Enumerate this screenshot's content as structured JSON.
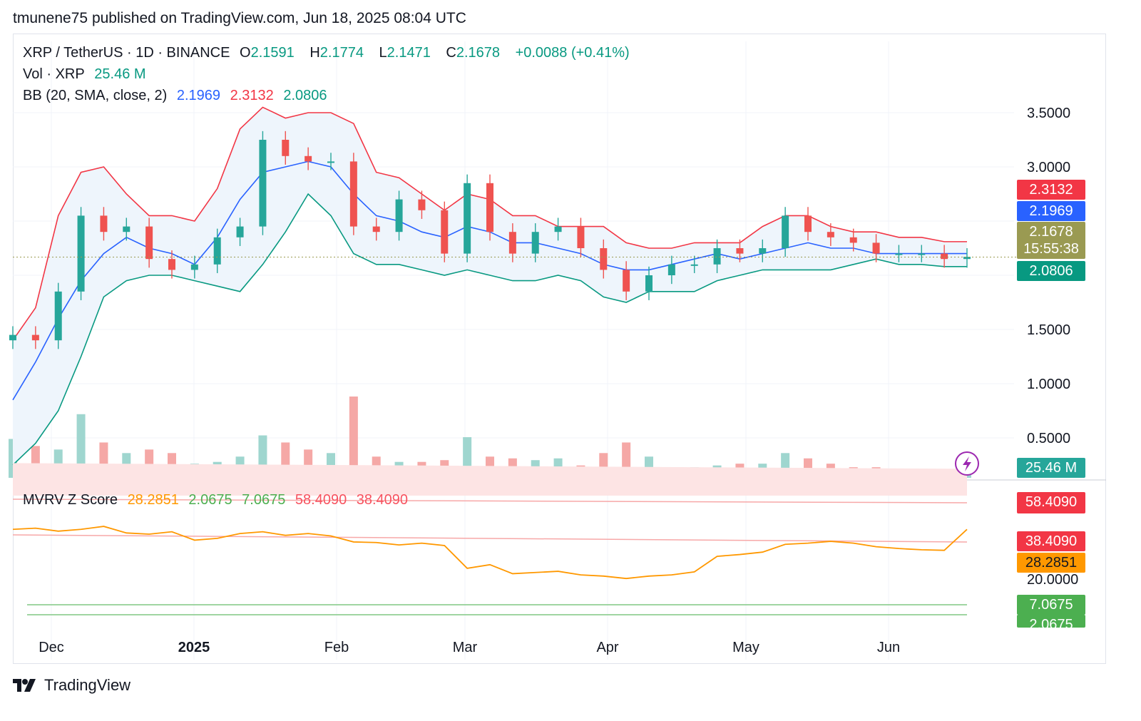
{
  "header": {
    "publisher": "tmunene75",
    "published_on_text": "published on TradingView.com,",
    "timestamp": "Jun 18, 2025 08:04 UTC"
  },
  "legend": {
    "symbol": "XRP / TetherUS · 1D · BINANCE",
    "open_label": "O",
    "open": "2.1591",
    "high_label": "H",
    "high": "2.1774",
    "low_label": "L",
    "low": "2.1471",
    "close_label": "C",
    "close": "2.1678",
    "change": "+0.0088 (+0.41%)",
    "vol_label": "Vol · XRP",
    "vol_value": "25.46 M",
    "bb_label": "BB (20, SMA, close, 2)",
    "bb_basis": "2.1969",
    "bb_upper": "2.3132",
    "bb_lower": "2.0806",
    "mvrv_label": "MVRV Z Score",
    "mvrv_values": [
      "28.2851",
      "2.0675",
      "7.0675",
      "58.4090",
      "38.4090"
    ]
  },
  "price_axis": {
    "ticks": [
      "3.5000",
      "3.0000",
      "1.5000",
      "1.0000",
      "0.5000"
    ],
    "tick_values": [
      3.5,
      3.0,
      1.5,
      1.0,
      0.5
    ]
  },
  "price_badges": {
    "upper": "2.3132",
    "basis": "2.1969",
    "last": "2.1678",
    "countdown": "15:55:38",
    "lower": "2.0806",
    "volume": "25.46 M"
  },
  "mvrv_axis": {
    "tick": "20.0000",
    "badges": [
      "58.4090",
      "38.4090",
      "28.2851",
      "7.0675",
      "2.0675"
    ]
  },
  "time_axis": {
    "labels": [
      "Dec",
      "2025",
      "Feb",
      "Mar",
      "Apr",
      "May",
      "Jun"
    ]
  },
  "colors": {
    "up": "#26a69a",
    "down": "#ef5350",
    "bb_upper": "#f23645",
    "bb_basis": "#2962ff",
    "bb_lower": "#089981",
    "bb_fill": "#eef5fc",
    "mvrv_line": "#ff9800",
    "mvrv_band": "#fde4e4",
    "mvrv_green": "#4caf50",
    "last_price": "#9a9a52"
  },
  "brand": {
    "name": "TradingView"
  },
  "chart_data": {
    "type": "line",
    "title": "XRP / TetherUS · 1D · BINANCE",
    "x": [
      "2024-11-20",
      "2024-11-25",
      "2024-11-30",
      "2024-12-05",
      "2024-12-10",
      "2024-12-15",
      "2024-12-20",
      "2024-12-25",
      "2024-12-30",
      "2025-01-05",
      "2025-01-10",
      "2025-01-15",
      "2025-01-20",
      "2025-01-25",
      "2025-01-30",
      "2025-02-05",
      "2025-02-10",
      "2025-02-15",
      "2025-02-20",
      "2025-02-25",
      "2025-03-01",
      "2025-03-05",
      "2025-03-10",
      "2025-03-15",
      "2025-03-20",
      "2025-03-25",
      "2025-03-30",
      "2025-04-05",
      "2025-04-10",
      "2025-04-15",
      "2025-04-20",
      "2025-04-25",
      "2025-04-30",
      "2025-05-05",
      "2025-05-10",
      "2025-05-15",
      "2025-05-20",
      "2025-05-25",
      "2025-05-30",
      "2025-06-05",
      "2025-06-10",
      "2025-06-15",
      "2025-06-18"
    ],
    "series": [
      {
        "name": "Price",
        "values": [
          1.45,
          1.4,
          1.85,
          2.55,
          2.4,
          2.45,
          2.15,
          2.05,
          2.1,
          2.35,
          2.45,
          3.25,
          3.1,
          3.05,
          3.05,
          2.45,
          2.4,
          2.7,
          2.6,
          2.2,
          2.85,
          2.4,
          2.2,
          2.4,
          2.45,
          2.25,
          2.05,
          1.85,
          2.0,
          2.1,
          2.1,
          2.25,
          2.2,
          2.25,
          2.55,
          2.4,
          2.35,
          2.3,
          2.2,
          2.2,
          2.2,
          2.15,
          2.17
        ]
      },
      {
        "name": "BB upper",
        "values": [
          1.4,
          1.7,
          2.55,
          2.95,
          3.0,
          2.75,
          2.55,
          2.55,
          2.5,
          2.8,
          3.35,
          3.55,
          3.45,
          3.5,
          3.5,
          3.4,
          2.95,
          2.9,
          2.75,
          2.6,
          2.75,
          2.7,
          2.55,
          2.55,
          2.45,
          2.45,
          2.45,
          2.3,
          2.25,
          2.25,
          2.3,
          2.3,
          2.3,
          2.45,
          2.55,
          2.55,
          2.45,
          2.4,
          2.4,
          2.35,
          2.35,
          2.31,
          2.31
        ]
      },
      {
        "name": "BB basis",
        "values": [
          0.85,
          1.2,
          1.6,
          1.95,
          2.2,
          2.35,
          2.25,
          2.2,
          2.1,
          2.35,
          2.7,
          2.95,
          3.0,
          3.05,
          3.0,
          2.75,
          2.55,
          2.5,
          2.4,
          2.35,
          2.45,
          2.4,
          2.3,
          2.3,
          2.25,
          2.2,
          2.1,
          2.05,
          2.05,
          2.1,
          2.15,
          2.2,
          2.15,
          2.2,
          2.25,
          2.3,
          2.25,
          2.25,
          2.2,
          2.2,
          2.2,
          2.2,
          2.2
        ]
      },
      {
        "name": "BB lower",
        "values": [
          0.25,
          0.45,
          0.75,
          1.25,
          1.8,
          1.95,
          2.0,
          2.0,
          1.95,
          1.9,
          1.85,
          2.1,
          2.4,
          2.75,
          2.55,
          2.2,
          2.1,
          2.1,
          2.05,
          2.0,
          2.05,
          2.0,
          1.95,
          1.95,
          2.0,
          1.95,
          1.8,
          1.75,
          1.85,
          1.85,
          1.85,
          1.95,
          2.0,
          2.05,
          2.05,
          2.05,
          2.05,
          2.1,
          2.15,
          2.1,
          2.1,
          2.08,
          2.08
        ]
      }
    ],
    "volume_m": [
      110,
      90,
      80,
      180,
      100,
      70,
      80,
      70,
      40,
      45,
      60,
      120,
      100,
      80,
      70,
      230,
      60,
      45,
      45,
      50,
      115,
      60,
      55,
      50,
      55,
      35,
      70,
      100,
      60,
      30,
      30,
      35,
      40,
      40,
      70,
      55,
      40,
      30,
      30,
      25,
      25,
      20,
      25
    ],
    "mvrv": {
      "name": "MVRV Z Score",
      "values": [
        28.3,
        28.5,
        28.0,
        28.3,
        28.8,
        27.7,
        27.5,
        27.9,
        26.5,
        26.8,
        27.6,
        27.9,
        27.3,
        27.6,
        27.2,
        26.2,
        26.1,
        25.7,
        26.0,
        25.6,
        21.8,
        22.4,
        20.9,
        21.1,
        21.3,
        20.7,
        20.5,
        20.1,
        20.5,
        20.7,
        21.2,
        23.8,
        24.1,
        24.5,
        25.8,
        26.0,
        26.3,
        26.0,
        25.4,
        25.1,
        24.9,
        24.8,
        28.3
      ],
      "bands": [
        2.0675,
        7.0675,
        38.409,
        58.409
      ]
    },
    "xlabel": "",
    "ylabel": "",
    "ylim": [
      0.0,
      3.7
    ],
    "grid": true,
    "legend": "top-left"
  }
}
